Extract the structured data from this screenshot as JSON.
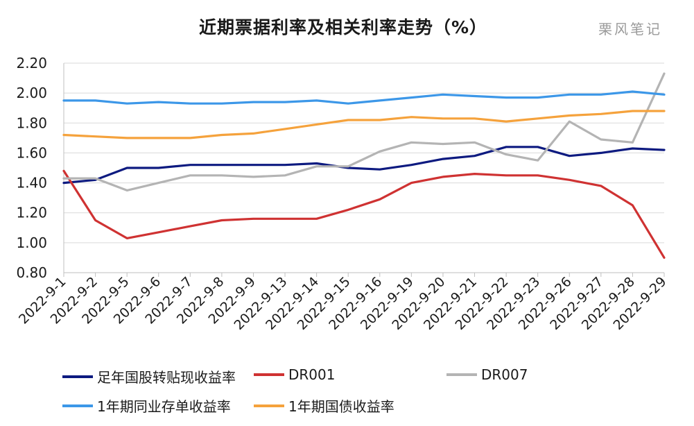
{
  "title": "近期票据利率及相关利率走势（%）",
  "watermark": "栗风笔记",
  "chart_data": {
    "type": "line",
    "categories": [
      "2022-9-1",
      "2022-9-2",
      "2022-9-5",
      "2022-9-6",
      "2022-9-7",
      "2022-9-8",
      "2022-9-9",
      "2022-9-13",
      "2022-9-14",
      "2022-9-15",
      "2022-9-16",
      "2022-9-19",
      "2022-9-20",
      "2022-9-21",
      "2022-9-22",
      "2022-9-23",
      "2022-9-26",
      "2022-9-27",
      "2022-9-28",
      "2022-9-29"
    ],
    "ylim": [
      0.8,
      2.2
    ],
    "yticks": [
      "0.80",
      "1.00",
      "1.20",
      "1.40",
      "1.60",
      "1.80",
      "2.00",
      "2.20"
    ],
    "grid": true,
    "legend_position": "bottom",
    "series": [
      {
        "name": "足年国股转贴现收益率",
        "color": "#0d1a80",
        "values": [
          1.4,
          1.42,
          1.5,
          1.5,
          1.52,
          1.52,
          1.52,
          1.52,
          1.53,
          1.5,
          1.49,
          1.52,
          1.56,
          1.58,
          1.64,
          1.64,
          1.58,
          1.6,
          1.63,
          1.62
        ]
      },
      {
        "name": "DR001",
        "color": "#cf3232",
        "values": [
          1.48,
          1.15,
          1.03,
          1.07,
          1.11,
          1.15,
          1.16,
          1.16,
          1.16,
          1.22,
          1.29,
          1.4,
          1.44,
          1.46,
          1.45,
          1.45,
          1.42,
          1.38,
          1.25,
          0.9
        ]
      },
      {
        "name": "DR007",
        "color": "#b4b4b4",
        "values": [
          1.43,
          1.43,
          1.35,
          1.4,
          1.45,
          1.45,
          1.44,
          1.45,
          1.51,
          1.51,
          1.61,
          1.67,
          1.66,
          1.67,
          1.59,
          1.55,
          1.81,
          1.69,
          1.67,
          2.13
        ]
      },
      {
        "name": "1年期同业存单收益率",
        "color": "#3c97e8",
        "values": [
          1.95,
          1.95,
          1.93,
          1.94,
          1.93,
          1.93,
          1.94,
          1.94,
          1.95,
          1.93,
          1.95,
          1.97,
          1.99,
          1.98,
          1.97,
          1.97,
          1.99,
          1.99,
          2.01,
          1.99
        ]
      },
      {
        "name": "1年期国债收益率",
        "color": "#f5a23c",
        "values": [
          1.72,
          1.71,
          1.7,
          1.7,
          1.7,
          1.72,
          1.73,
          1.76,
          1.79,
          1.82,
          1.82,
          1.84,
          1.83,
          1.83,
          1.81,
          1.83,
          1.85,
          1.86,
          1.88,
          1.88
        ]
      }
    ]
  }
}
